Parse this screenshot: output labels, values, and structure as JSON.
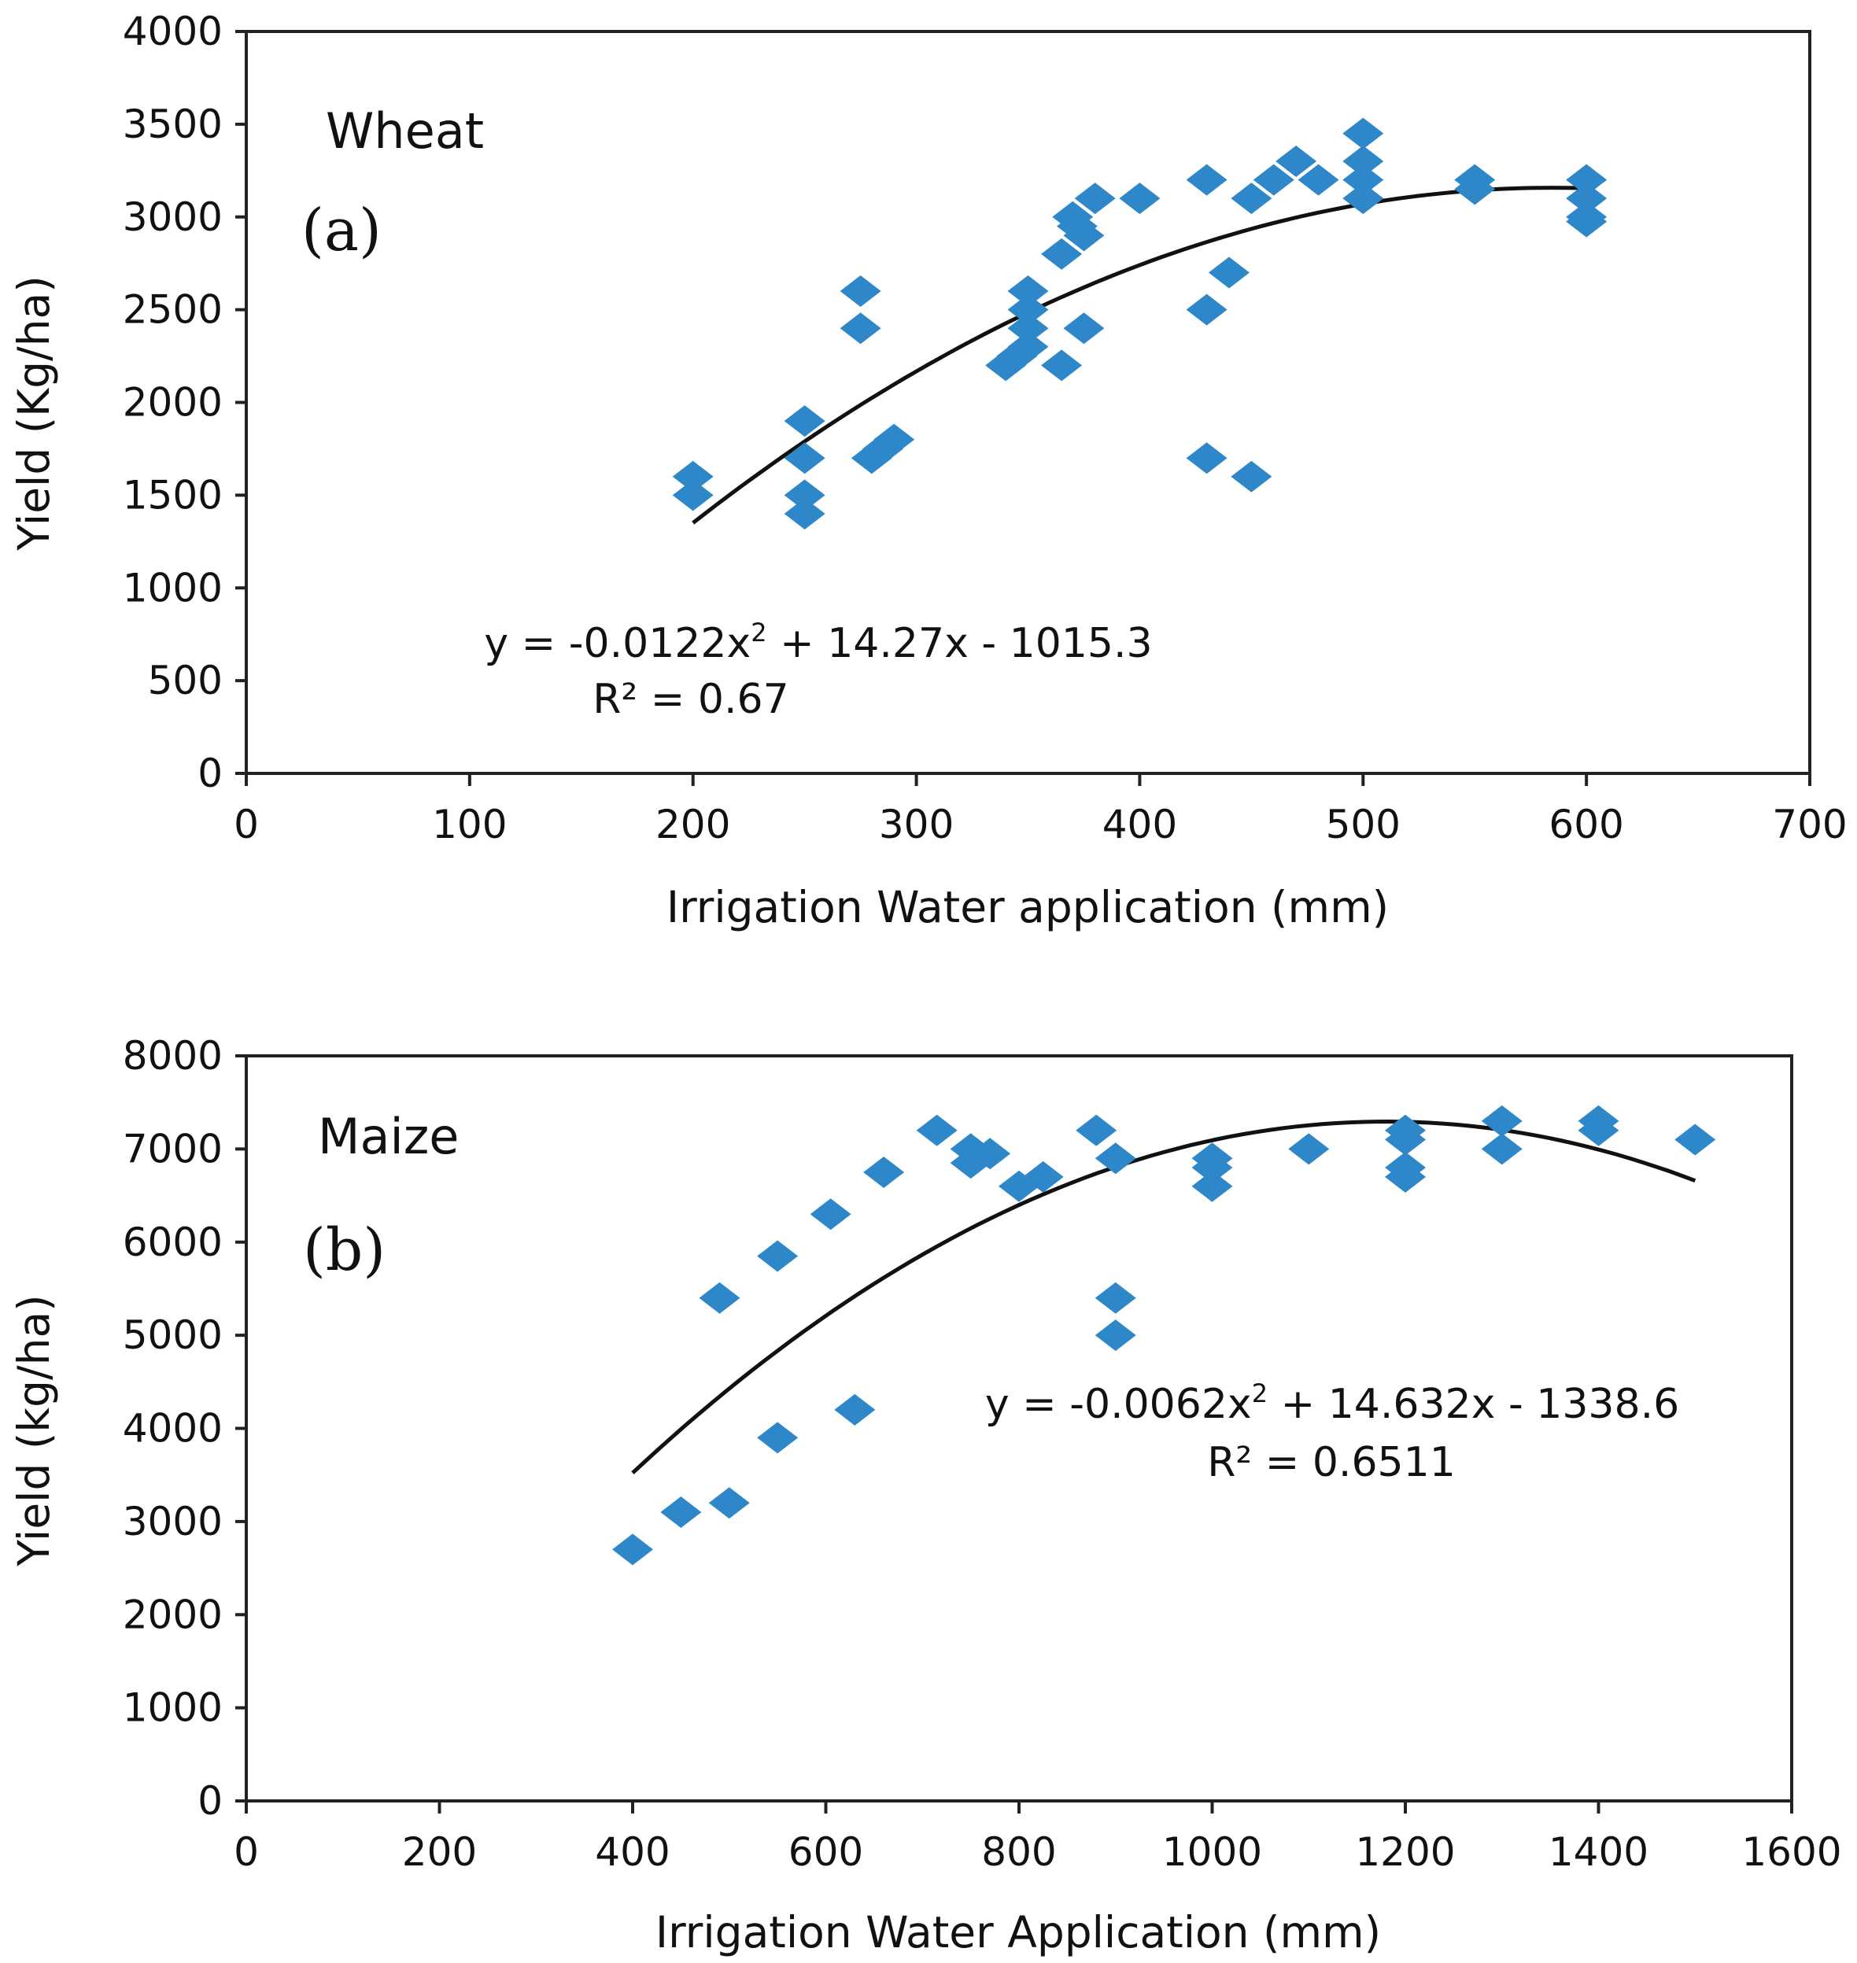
{
  "colors": {
    "marker": "#2e87c8",
    "trend": "#111111",
    "axis": "#222222",
    "background": "#ffffff"
  },
  "chart_data": [
    {
      "type": "scatter",
      "panel_name": "Wheat",
      "panel_tag": "(a)",
      "xlabel": "Irrigation Water application (mm)",
      "ylabel": "Yield (Kg/ha)",
      "xlim": [
        0,
        700
      ],
      "ylim": [
        0,
        4000
      ],
      "xticks": [
        0,
        100,
        200,
        300,
        400,
        500,
        600,
        700
      ],
      "yticks": [
        0,
        500,
        1000,
        1500,
        2000,
        2500,
        3000,
        3500,
        4000
      ],
      "marker": "diamond",
      "equation_y": "y = -0.0122x",
      "equation_y_exp": "2",
      "equation_rest": " + 14.27x - 1015.3",
      "r_squared": "R² = 0.67",
      "trend": {
        "a": -0.0122,
        "b": 14.27,
        "c": -1015.3,
        "x_from": 200,
        "x_to": 600
      },
      "points": [
        [
          200,
          1600
        ],
        [
          200,
          1500
        ],
        [
          250,
          1900
        ],
        [
          250,
          1700
        ],
        [
          250,
          1500
        ],
        [
          250,
          1400
        ],
        [
          275,
          2600
        ],
        [
          275,
          2400
        ],
        [
          280,
          1700
        ],
        [
          285,
          1750
        ],
        [
          290,
          1800
        ],
        [
          340,
          2200
        ],
        [
          345,
          2250
        ],
        [
          350,
          2600
        ],
        [
          350,
          2500
        ],
        [
          350,
          2400
        ],
        [
          350,
          2300
        ],
        [
          365,
          2800
        ],
        [
          365,
          2200
        ],
        [
          370,
          3000
        ],
        [
          372,
          2950
        ],
        [
          375,
          2900
        ],
        [
          375,
          2400
        ],
        [
          380,
          3100
        ],
        [
          400,
          3100
        ],
        [
          430,
          3200
        ],
        [
          430,
          2500
        ],
        [
          430,
          1700
        ],
        [
          440,
          2700
        ],
        [
          450,
          3100
        ],
        [
          450,
          1600
        ],
        [
          460,
          3200
        ],
        [
          470,
          3300
        ],
        [
          480,
          3200
        ],
        [
          500,
          3450
        ],
        [
          500,
          3300
        ],
        [
          500,
          3200
        ],
        [
          500,
          3100
        ],
        [
          550,
          3200
        ],
        [
          550,
          3150
        ],
        [
          600,
          3200
        ],
        [
          600,
          3100
        ],
        [
          600,
          3000
        ],
        [
          600,
          2975
        ]
      ]
    },
    {
      "type": "scatter",
      "panel_name": "Maize",
      "panel_tag": "(b)",
      "xlabel": "Irrigation Water Application (mm)",
      "ylabel": "Yield (kg/ha)",
      "xlim": [
        0,
        1600
      ],
      "ylim": [
        0,
        8000
      ],
      "xticks": [
        0,
        200,
        400,
        600,
        800,
        1000,
        1200,
        1400,
        1600
      ],
      "yticks": [
        0,
        1000,
        2000,
        3000,
        4000,
        5000,
        6000,
        7000,
        8000
      ],
      "marker": "diamond",
      "equation_y": "y = -0.0062x",
      "equation_y_exp": "2",
      "equation_rest": " + 14.632x - 1338.6",
      "r_squared": "R² = 0.6511",
      "trend": {
        "a": -0.0062,
        "b": 14.632,
        "c": -1338.6,
        "x_from": 400,
        "x_to": 1500
      },
      "points": [
        [
          400,
          2700
        ],
        [
          450,
          3100
        ],
        [
          500,
          3200
        ],
        [
          490,
          5400
        ],
        [
          550,
          5850
        ],
        [
          550,
          3900
        ],
        [
          605,
          6300
        ],
        [
          630,
          4200
        ],
        [
          660,
          6750
        ],
        [
          715,
          7200
        ],
        [
          750,
          7000
        ],
        [
          750,
          6850
        ],
        [
          770,
          6950
        ],
        [
          800,
          6600
        ],
        [
          825,
          6700
        ],
        [
          880,
          7200
        ],
        [
          900,
          6900
        ],
        [
          900,
          5400
        ],
        [
          900,
          5000
        ],
        [
          1000,
          6900
        ],
        [
          1000,
          6800
        ],
        [
          1000,
          6600
        ],
        [
          1100,
          7000
        ],
        [
          1200,
          7200
        ],
        [
          1200,
          7100
        ],
        [
          1200,
          6800
        ],
        [
          1200,
          6700
        ],
        [
          1300,
          7300
        ],
        [
          1300,
          7000
        ],
        [
          1400,
          7300
        ],
        [
          1400,
          7200
        ],
        [
          1500,
          7100
        ]
      ]
    }
  ]
}
